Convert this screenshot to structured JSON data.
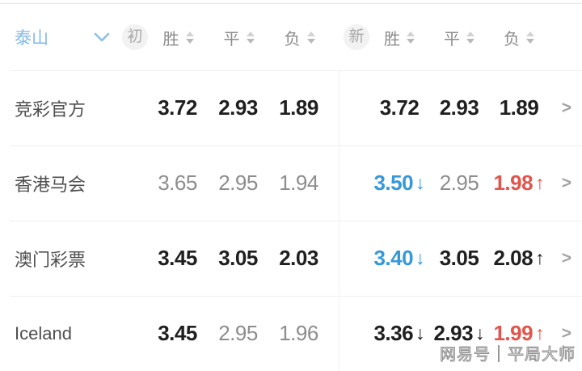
{
  "header": {
    "team": "泰山",
    "initial_badge": "初",
    "latest_badge": "新",
    "columns": {
      "win": "胜",
      "draw": "平",
      "lose": "负"
    }
  },
  "rows": [
    {
      "name": "竞彩官方",
      "initial": [
        {
          "value": "3.72",
          "color": "dark"
        },
        {
          "value": "2.93",
          "color": "dark"
        },
        {
          "value": "1.89",
          "color": "dark"
        }
      ],
      "latest": [
        {
          "value": "3.72",
          "color": "dark"
        },
        {
          "value": "2.93",
          "color": "dark"
        },
        {
          "value": "1.89",
          "color": "dark"
        }
      ]
    },
    {
      "name": "香港马会",
      "initial": [
        {
          "value": "3.65",
          "color": "muted"
        },
        {
          "value": "2.95",
          "color": "muted"
        },
        {
          "value": "1.94",
          "color": "muted"
        }
      ],
      "latest": [
        {
          "value": "3.50",
          "color": "blue",
          "arrow": "down",
          "arrow_color": "blue"
        },
        {
          "value": "2.95",
          "color": "muted"
        },
        {
          "value": "1.98",
          "color": "red",
          "arrow": "up",
          "arrow_color": "red"
        }
      ]
    },
    {
      "name": "澳门彩票",
      "initial": [
        {
          "value": "3.45",
          "color": "dark"
        },
        {
          "value": "3.05",
          "color": "dark"
        },
        {
          "value": "2.03",
          "color": "dark"
        }
      ],
      "latest": [
        {
          "value": "3.40",
          "color": "blue",
          "arrow": "down",
          "arrow_color": "blue"
        },
        {
          "value": "3.05",
          "color": "dark"
        },
        {
          "value": "2.08",
          "color": "dark",
          "arrow": "up",
          "arrow_color": "dark"
        }
      ]
    },
    {
      "name": "Iceland",
      "initial": [
        {
          "value": "3.45",
          "color": "dark"
        },
        {
          "value": "2.95",
          "color": "muted"
        },
        {
          "value": "1.96",
          "color": "muted"
        }
      ],
      "latest": [
        {
          "value": "3.36",
          "color": "dark",
          "arrow": "down",
          "arrow_color": "dark"
        },
        {
          "value": "2.93",
          "color": "dark",
          "arrow": "down",
          "arrow_color": "dark"
        },
        {
          "value": "1.99",
          "color": "red",
          "arrow": "up",
          "arrow_color": "red"
        }
      ]
    }
  ],
  "icons": {
    "team_dropdown": "chevron-down",
    "sort": "sort-arrows",
    "row_link_glyph": ">",
    "arrow_glyphs": {
      "down": "↓",
      "up": "↑"
    }
  },
  "colors": {
    "accent_blue": "#3598db",
    "accent_red": "#e2544c",
    "team_blue": "#85b9e6",
    "dark_text": "#1f1f1f",
    "muted_text": "#8d8d8d"
  },
  "watermark": "网易号｜平局大师"
}
